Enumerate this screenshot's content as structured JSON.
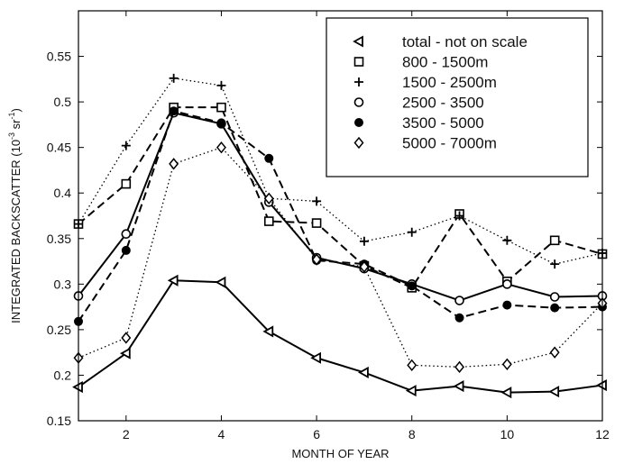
{
  "chart_data": {
    "type": "line",
    "xlabel": "MONTH OF YEAR",
    "ylabel_main": "INTEGRATED BACKSCATTER (10",
    "ylabel_exp1": "-3",
    "ylabel_mid": " sr",
    "ylabel_exp2": "-1",
    "ylabel_end": ")",
    "xlim": [
      1,
      12
    ],
    "ylim": [
      0.15,
      0.6
    ],
    "xticks": [
      2,
      4,
      6,
      8,
      10,
      12
    ],
    "yticks": [
      0.15,
      0.2,
      0.25,
      0.3,
      0.35,
      0.4,
      0.45,
      0.5,
      0.55
    ],
    "ytick_labels": [
      "0.15",
      "0.2",
      "0.25",
      "0.3",
      "0.35",
      "0.4",
      "0.45",
      "0.5",
      "0.55"
    ],
    "x": [
      1,
      2,
      3,
      4,
      5,
      6,
      7,
      8,
      9,
      10,
      11,
      12
    ],
    "legend_position": "top-right",
    "series": [
      {
        "name": "total - not on scale",
        "marker": "triangle-left",
        "line": "solid",
        "values": [
          0.187,
          0.224,
          0.304,
          0.302,
          0.248,
          0.219,
          0.203,
          0.183,
          0.188,
          0.181,
          0.182,
          0.189
        ]
      },
      {
        "name": "800 - 1500m",
        "marker": "square",
        "line": "dashed",
        "values": [
          0.366,
          0.41,
          0.494,
          0.494,
          0.369,
          0.367,
          0.32,
          0.296,
          0.377,
          0.303,
          0.348,
          0.333
        ]
      },
      {
        "name": "1500 - 2500m",
        "marker": "plus",
        "line": "dotted",
        "values": [
          0.366,
          0.452,
          0.526,
          0.518,
          0.394,
          0.391,
          0.347,
          0.357,
          0.375,
          0.348,
          0.322,
          0.334
        ]
      },
      {
        "name": "2500 - 3500",
        "marker": "circle-open",
        "line": "solid",
        "values": [
          0.287,
          0.355,
          0.488,
          0.476,
          0.39,
          0.329,
          0.317,
          0.3,
          0.282,
          0.3,
          0.286,
          0.287
        ]
      },
      {
        "name": "3500 - 5000",
        "marker": "circle-filled",
        "line": "dashed",
        "values": [
          0.259,
          0.337,
          0.49,
          0.477,
          0.438,
          0.326,
          0.322,
          0.298,
          0.263,
          0.277,
          0.274,
          0.275
        ]
      },
      {
        "name": "5000 - 7000m",
        "marker": "diamond",
        "line": "dotted",
        "values": [
          0.219,
          0.241,
          0.432,
          0.45,
          0.394,
          0.327,
          0.319,
          0.211,
          0.209,
          0.212,
          0.225,
          0.279
        ]
      }
    ]
  }
}
